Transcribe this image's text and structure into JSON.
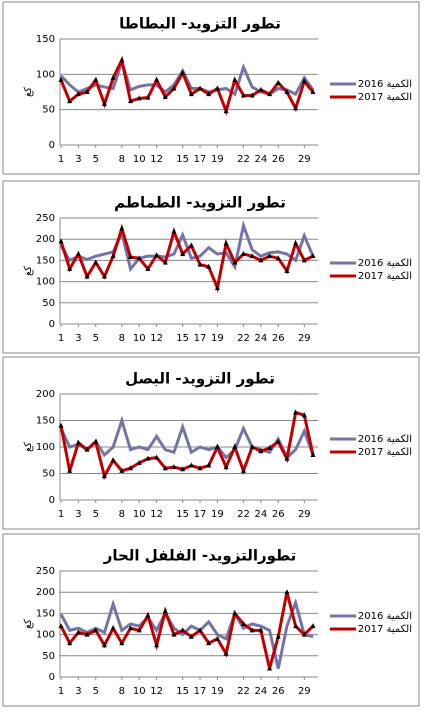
{
  "chart_data": [
    {
      "type": "line",
      "title": "تطور التزويد- البطاطا",
      "y_label": "كغ",
      "x": [
        1,
        2,
        3,
        4,
        5,
        6,
        7,
        8,
        9,
        10,
        11,
        12,
        13,
        14,
        15,
        16,
        17,
        18,
        19,
        20,
        21,
        22,
        23,
        24,
        25,
        26,
        27,
        28,
        29,
        30
      ],
      "xlim": [
        1,
        30
      ],
      "xticks": [
        1,
        3,
        5,
        8,
        10,
        12,
        15,
        17,
        19,
        22,
        24,
        26,
        29
      ],
      "ylim": [
        0,
        150
      ],
      "yticks": [
        0,
        50,
        100,
        150
      ],
      "legend": "right",
      "series": [
        {
          "name": "الكمية 2016",
          "color": "#7375a8",
          "values": [
            98,
            85,
            75,
            80,
            85,
            82,
            80,
            118,
            78,
            83,
            85,
            85,
            75,
            85,
            105,
            80,
            80,
            75,
            78,
            80,
            72,
            110,
            82,
            75,
            72,
            80,
            78,
            72,
            95,
            78
          ]
        },
        {
          "name": "الكمية 2017",
          "color": "#c00000",
          "values": [
            92,
            62,
            72,
            75,
            92,
            58,
            95,
            120,
            62,
            66,
            67,
            92,
            68,
            80,
            102,
            72,
            80,
            72,
            80,
            48,
            92,
            70,
            70,
            78,
            72,
            88,
            75,
            52,
            90,
            75
          ]
        }
      ]
    },
    {
      "type": "line",
      "title": "تطور التزويد- الطماطم",
      "y_label": "كغ",
      "x": [
        1,
        2,
        3,
        4,
        5,
        6,
        7,
        8,
        9,
        10,
        11,
        12,
        13,
        14,
        15,
        16,
        17,
        18,
        19,
        20,
        21,
        22,
        23,
        24,
        25,
        26,
        27,
        28,
        29,
        30
      ],
      "xlim": [
        1,
        30
      ],
      "xticks": [
        1,
        3,
        5,
        8,
        10,
        12,
        15,
        17,
        19,
        22,
        24,
        26,
        29
      ],
      "ylim": [
        0,
        250
      ],
      "yticks": [
        0,
        50,
        100,
        150,
        200,
        250
      ],
      "legend": "right",
      "series": [
        {
          "name": "الكمية 2016",
          "color": "#7375a8",
          "values": [
            185,
            150,
            160,
            152,
            160,
            165,
            170,
            215,
            130,
            155,
            160,
            160,
            158,
            165,
            210,
            155,
            160,
            180,
            165,
            168,
            135,
            232,
            175,
            160,
            168,
            170,
            165,
            150,
            208,
            160
          ]
        },
        {
          "name": "الكمية 2017",
          "color": "#c00000",
          "values": [
            195,
            130,
            165,
            112,
            145,
            112,
            160,
            225,
            158,
            155,
            130,
            162,
            145,
            218,
            165,
            185,
            140,
            135,
            85,
            190,
            145,
            165,
            160,
            150,
            160,
            155,
            125,
            190,
            150,
            160
          ]
        }
      ]
    },
    {
      "type": "line",
      "title": "تطور التزويد- البصل",
      "y_label": "كغ",
      "x": [
        1,
        2,
        3,
        4,
        5,
        6,
        7,
        8,
        9,
        10,
        11,
        12,
        13,
        14,
        15,
        16,
        17,
        18,
        19,
        20,
        21,
        22,
        23,
        24,
        25,
        26,
        27,
        28,
        29,
        30
      ],
      "xlim": [
        1,
        30
      ],
      "xticks": [
        1,
        3,
        5,
        8,
        10,
        12,
        15,
        17,
        19,
        22,
        24,
        26,
        29
      ],
      "ylim": [
        0,
        200
      ],
      "yticks": [
        0,
        50,
        100,
        150,
        200
      ],
      "legend": "right",
      "series": [
        {
          "name": "الكمية 2016",
          "color": "#7375a8",
          "values": [
            135,
            100,
            105,
            95,
            110,
            85,
            100,
            150,
            95,
            100,
            95,
            120,
            95,
            90,
            138,
            90,
            100,
            95,
            100,
            80,
            95,
            135,
            100,
            95,
            90,
            115,
            80,
            95,
            130,
            85
          ]
        },
        {
          "name": "الكمية 2017",
          "color": "#c00000",
          "values": [
            140,
            55,
            108,
            95,
            110,
            45,
            75,
            55,
            60,
            70,
            78,
            80,
            60,
            62,
            58,
            65,
            60,
            65,
            100,
            62,
            100,
            55,
            100,
            92,
            98,
            110,
            78,
            165,
            160,
            85
          ]
        }
      ]
    },
    {
      "type": "line",
      "title": "تطورالتزويد- الفلفل الحار",
      "y_label": "كغ",
      "x": [
        1,
        2,
        3,
        4,
        5,
        6,
        7,
        8,
        9,
        10,
        11,
        12,
        13,
        14,
        15,
        16,
        17,
        18,
        19,
        20,
        21,
        22,
        23,
        24,
        25,
        26,
        27,
        28,
        29,
        30
      ],
      "xlim": [
        1,
        30
      ],
      "xticks": [
        1,
        3,
        5,
        8,
        10,
        12,
        15,
        17,
        19,
        22,
        24,
        26,
        29
      ],
      "ylim": [
        0,
        250
      ],
      "yticks": [
        0,
        50,
        100,
        150,
        200,
        250
      ],
      "legend": "right",
      "series": [
        {
          "name": "الكمية 2016",
          "color": "#7375a8",
          "values": [
            148,
            110,
            115,
            105,
            115,
            105,
            172,
            110,
            125,
            120,
            140,
            110,
            150,
            115,
            100,
            120,
            110,
            130,
            100,
            90,
            150,
            115,
            125,
            120,
            110,
            20,
            120,
            175,
            100,
            95
          ]
        },
        {
          "name": "الكمية 2017",
          "color": "#c00000",
          "values": [
            120,
            80,
            105,
            100,
            110,
            75,
            115,
            80,
            115,
            110,
            145,
            75,
            155,
            100,
            110,
            95,
            110,
            80,
            90,
            55,
            150,
            125,
            110,
            110,
            20,
            95,
            200,
            120,
            100,
            120
          ]
        }
      ]
    }
  ]
}
